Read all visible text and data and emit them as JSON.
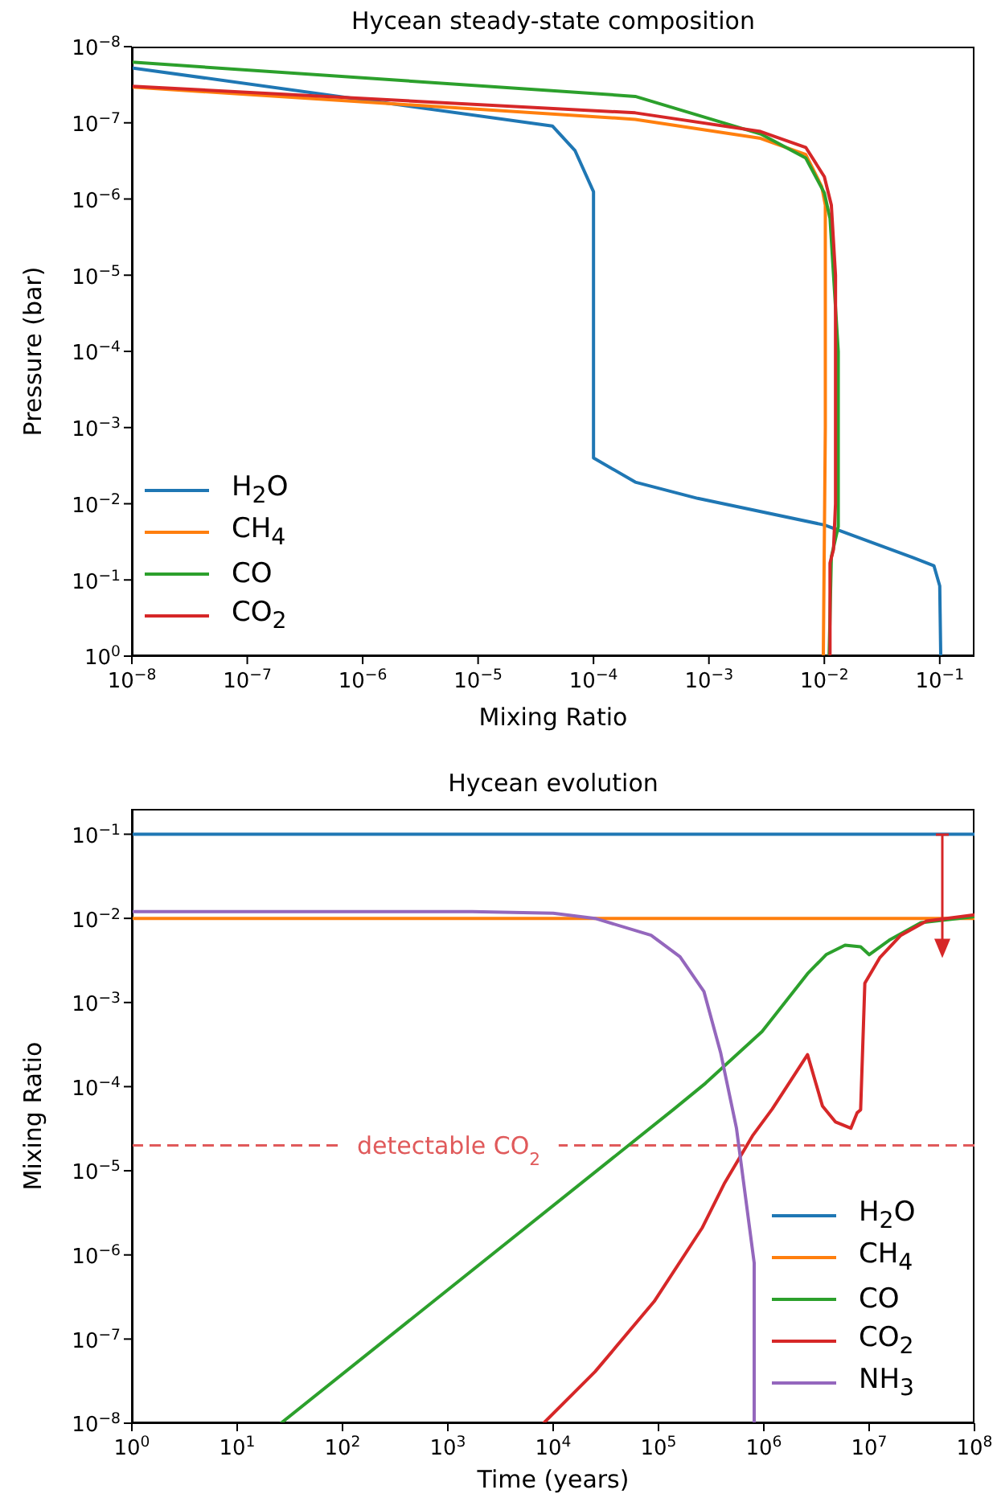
{
  "chart_data": [
    {
      "type": "line",
      "title": "Hycean steady-state composition",
      "xlabel": "Mixing Ratio",
      "ylabel": "Pressure (bar)",
      "log": "xy",
      "legend": "bottom left",
      "grid": false,
      "xlim": [
        1e-08,
        0.2
      ],
      "ylim": [
        1,
        1e-08
      ],
      "xticks": [
        {
          "value": 1e-08,
          "label": "10$^{−8}$"
        },
        {
          "value": 1e-07,
          "label": "10$^{−7}$"
        },
        {
          "value": 1e-06,
          "label": "10$^{−6}$"
        },
        {
          "value": 1e-05,
          "label": "10$^{−5}$"
        },
        {
          "value": 0.0001,
          "label": "10$^{−4}$"
        },
        {
          "value": 0.001,
          "label": "10$^{−3}$"
        },
        {
          "value": 0.01,
          "label": "10$^{−2}$"
        },
        {
          "value": 0.1,
          "label": "10$^{−1}$"
        }
      ],
      "yticks": [
        {
          "value": 1e-08,
          "label": "10$^{−8}$"
        },
        {
          "value": 1e-07,
          "label": "10$^{−7}$"
        },
        {
          "value": 1e-06,
          "label": "10$^{−6}$"
        },
        {
          "value": 1e-05,
          "label": "10$^{−5}$"
        },
        {
          "value": 0.0001,
          "label": "10$^{−4}$"
        },
        {
          "value": 0.001,
          "label": "10$^{−3}$"
        },
        {
          "value": 0.01,
          "label": "10$^{−2}$"
        },
        {
          "value": 0.1,
          "label": "10$^{−1}$"
        },
        {
          "value": 1,
          "label": "10$^{0}$"
        }
      ],
      "series": [
        {
          "name": "H$_{2}$O",
          "color": "#1f77b4",
          "x": [
            1e-08,
            4.4e-05,
            6.9e-05,
            0.0001,
            0.0001,
            0.0001,
            0.00023,
            0.0008,
            0.01,
            0.059,
            0.089,
            0.1,
            0.102
          ],
          "values": [
            1.9e-08,
            1.1e-07,
            2.3e-07,
            8e-07,
            2e-06,
            0.0025,
            0.0052,
            0.0085,
            0.019,
            0.051,
            0.065,
            0.12,
            1
          ]
        },
        {
          "name": "CH$_{4}$",
          "color": "#ff7f0e",
          "x": [
            1e-08,
            0.00023,
            0.0028,
            0.0069,
            0.0095,
            0.0102,
            0.0102,
            0.0098
          ],
          "values": [
            3.4e-08,
            9e-08,
            1.6e-07,
            2.6e-07,
            6.9e-07,
            1.2e-06,
            0.001,
            1
          ]
        },
        {
          "name": "CO",
          "color": "#2ca02c",
          "x": [
            1e-08,
            0.00023,
            0.0028,
            0.0069,
            0.01,
            0.0112,
            0.0132,
            0.0132,
            0.0115,
            0.011
          ],
          "values": [
            1.6e-08,
            4.5e-08,
            1.4e-07,
            2.9e-07,
            8.3e-07,
            1.8e-06,
            0.0001,
            0.02,
            0.05,
            1
          ]
        },
        {
          "name": "CO$_{2}$",
          "color": "#d62728",
          "x": [
            1e-08,
            0.00023,
            0.0028,
            0.0069,
            0.01,
            0.0115,
            0.0125,
            0.0125,
            0.012,
            0.0112,
            0.0112
          ],
          "values": [
            3.3e-08,
            7.4e-08,
            1.3e-07,
            2.1e-07,
            5.1e-07,
            1.2e-06,
            1e-05,
            0.01,
            0.04,
            0.06,
            1
          ]
        }
      ]
    },
    {
      "type": "line",
      "title": "Hycean evolution",
      "xlabel": "Time (years)",
      "ylabel": "Mixing Ratio",
      "log": "xy",
      "legend": "bottom right",
      "grid": false,
      "xlim": [
        1,
        100000000.0
      ],
      "ylim": [
        1e-08,
        0.2
      ],
      "xticks": [
        {
          "value": 1,
          "label": "10$^{0}$"
        },
        {
          "value": 10,
          "label": "10$^{1}$"
        },
        {
          "value": 100,
          "label": "10$^{2}$"
        },
        {
          "value": 1000,
          "label": "10$^{3}$"
        },
        {
          "value": 10000.0,
          "label": "10$^{4}$"
        },
        {
          "value": 100000.0,
          "label": "10$^{5}$"
        },
        {
          "value": 1000000.0,
          "label": "10$^{6}$"
        },
        {
          "value": 10000000.0,
          "label": "10$^{7}$"
        },
        {
          "value": 100000000.0,
          "label": "10$^{8}$"
        }
      ],
      "yticks": [
        {
          "value": 1e-08,
          "label": "10$^{−8}$"
        },
        {
          "value": 1e-07,
          "label": "10$^{−7}$"
        },
        {
          "value": 1e-06,
          "label": "10$^{−6}$"
        },
        {
          "value": 1e-05,
          "label": "10$^{−5}$"
        },
        {
          "value": 0.0001,
          "label": "10$^{−4}$"
        },
        {
          "value": 0.001,
          "label": "10$^{−3}$"
        },
        {
          "value": 0.01,
          "label": "10$^{−2}$"
        },
        {
          "value": 0.1,
          "label": "10$^{−1}$"
        }
      ],
      "ref_lines": [
        {
          "axis": "y",
          "value": 2e-05,
          "label": "detectable CO$_{2}$",
          "color": "#e05a5b",
          "line_style": "dashed"
        }
      ],
      "series": [
        {
          "name": "H$_{2}$O",
          "color": "#1f77b4",
          "x": [
            1,
            100000000.0
          ],
          "values": [
            0.1,
            0.1
          ]
        },
        {
          "name": "CH$_{4}$",
          "color": "#ff7f0e",
          "x": [
            1,
            100000000.0
          ],
          "values": [
            0.01,
            0.01
          ]
        },
        {
          "name": "CO",
          "color": "#2ca02c",
          "x": [
            26,
            140000.0,
            280000.0,
            960000.0,
            2600000.0,
            3900000.0,
            5900000.0,
            8300000.0,
            10000000.0,
            15500000.0,
            31000000.0,
            100000000.0
          ],
          "values": [
            1e-08,
            5.4e-05,
            0.00011,
            0.00045,
            0.0022,
            0.0037,
            0.0048,
            0.0046,
            0.0037,
            0.0055,
            0.0089,
            0.0105
          ]
        },
        {
          "name": "CO$_{2}$",
          "color": "#d62728",
          "x": [
            8100.0,
            25000.0,
            91000.0,
            260000.0,
            420000.0,
            780000.0,
            1200000.0,
            1500000.0,
            2600000.0,
            3600000.0,
            4800000.0,
            6700000.0,
            7700000.0,
            8300000.0,
            9100000.0,
            12600000.0,
            20000000.0,
            35000000.0,
            100000000.0
          ],
          "values": [
            1e-08,
            4.1e-08,
            2.8e-07,
            2.1e-06,
            7e-06,
            2.6e-05,
            5.4e-05,
            8.3e-05,
            0.00024,
            5.9e-05,
            3.8e-05,
            3.2e-05,
            4.9e-05,
            5.3e-05,
            0.0017,
            0.0034,
            0.0063,
            0.0093,
            0.011
          ]
        },
        {
          "name": "NH$_{3}$",
          "color": "#9467bd",
          "x": [
            1,
            1700.0,
            10000.0,
            25000.0,
            85000.0,
            160000.0,
            270000.0,
            390000.0,
            550000.0,
            810000.0,
            810000.0
          ],
          "values": [
            0.012,
            0.012,
            0.0115,
            0.01,
            0.0063,
            0.0035,
            0.00135,
            0.00025,
            3.2e-05,
            8e-07,
            1e-08
          ]
        }
      ]
    }
  ]
}
